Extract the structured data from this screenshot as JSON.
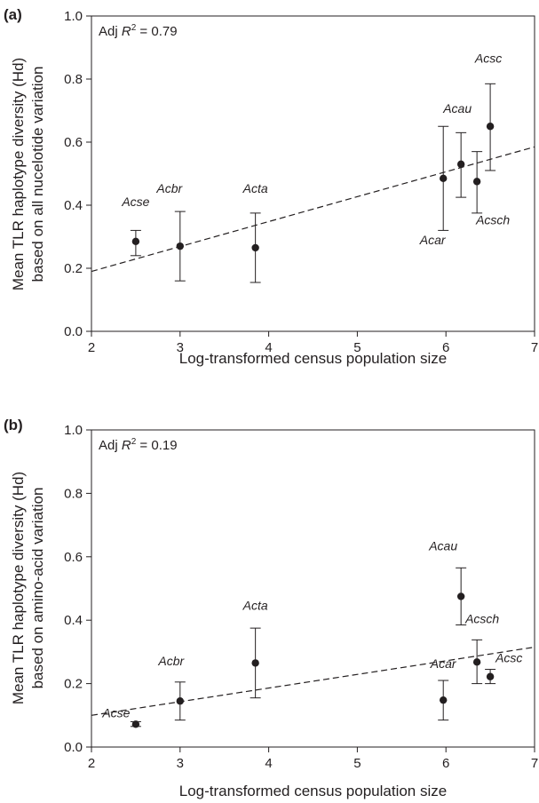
{
  "chart_data": [
    {
      "type": "scatter",
      "panel_label": "(a)",
      "annotation": {
        "prefix": "Adj ",
        "symbol": "R",
        "exponent": "2",
        "value": " = 0.79"
      },
      "xlabel": "Log-transformed census population size",
      "ylabel_lines": [
        "Mean TLR haplotype diversity (Hd)",
        "based on all nucelotide variation"
      ],
      "xlim": [
        2,
        7
      ],
      "ylim": [
        0,
        1
      ],
      "xticks": [
        "2",
        "3",
        "4",
        "5",
        "6",
        "7"
      ],
      "yticks": [
        "0.0",
        "0.2",
        "0.4",
        "0.6",
        "0.8",
        "1.0"
      ],
      "regression": {
        "x": [
          2,
          7
        ],
        "y": [
          0.19,
          0.585
        ],
        "style": "dashed"
      },
      "points": [
        {
          "label": "Acse",
          "x": 2.5,
          "y": 0.285,
          "err_low": 0.24,
          "err_high": 0.32
        },
        {
          "label": "Acbr",
          "x": 3.0,
          "y": 0.27,
          "err_low": 0.16,
          "err_high": 0.38
        },
        {
          "label": "Acta",
          "x": 3.85,
          "y": 0.265,
          "err_low": 0.155,
          "err_high": 0.375
        },
        {
          "label": "Acar",
          "x": 5.97,
          "y": 0.485,
          "err_low": 0.32,
          "err_high": 0.65
        },
        {
          "label": "Acau",
          "x": 6.17,
          "y": 0.53,
          "err_low": 0.425,
          "err_high": 0.63
        },
        {
          "label": "Acsch",
          "x": 6.35,
          "y": 0.475,
          "err_low": 0.375,
          "err_high": 0.57
        },
        {
          "label": "Acsc",
          "x": 6.5,
          "y": 0.65,
          "err_low": 0.51,
          "err_high": 0.785
        }
      ]
    },
    {
      "type": "scatter",
      "panel_label": "(b)",
      "annotation": {
        "prefix": "Adj ",
        "symbol": "R",
        "exponent": "2",
        "value": " = 0.19"
      },
      "xlabel": "Log-transformed census population size",
      "ylabel_lines": [
        "Mean TLR haplotype diversity (Hd)",
        "based on amino-acid variation"
      ],
      "xlim": [
        2,
        7
      ],
      "ylim": [
        0,
        1
      ],
      "xticks": [
        "2",
        "3",
        "4",
        "5",
        "6",
        "7"
      ],
      "yticks": [
        "0.0",
        "0.2",
        "0.4",
        "0.6",
        "0.8",
        "1.0"
      ],
      "regression": {
        "x": [
          2,
          7
        ],
        "y": [
          0.1,
          0.315
        ],
        "style": "dashed"
      },
      "points": [
        {
          "label": "Acse",
          "x": 2.5,
          "y": 0.072,
          "err_low": 0.065,
          "err_high": 0.08
        },
        {
          "label": "Acbr",
          "x": 3.0,
          "y": 0.145,
          "err_low": 0.085,
          "err_high": 0.205
        },
        {
          "label": "Acta",
          "x": 3.85,
          "y": 0.265,
          "err_low": 0.155,
          "err_high": 0.375
        },
        {
          "label": "Acar",
          "x": 5.97,
          "y": 0.148,
          "err_low": 0.085,
          "err_high": 0.21
        },
        {
          "label": "Acau",
          "x": 6.17,
          "y": 0.475,
          "err_low": 0.385,
          "err_high": 0.565
        },
        {
          "label": "Acsch",
          "x": 6.35,
          "y": 0.268,
          "err_low": 0.2,
          "err_high": 0.338
        },
        {
          "label": "Acsc",
          "x": 6.5,
          "y": 0.222,
          "err_low": 0.2,
          "err_high": 0.245
        }
      ]
    }
  ]
}
